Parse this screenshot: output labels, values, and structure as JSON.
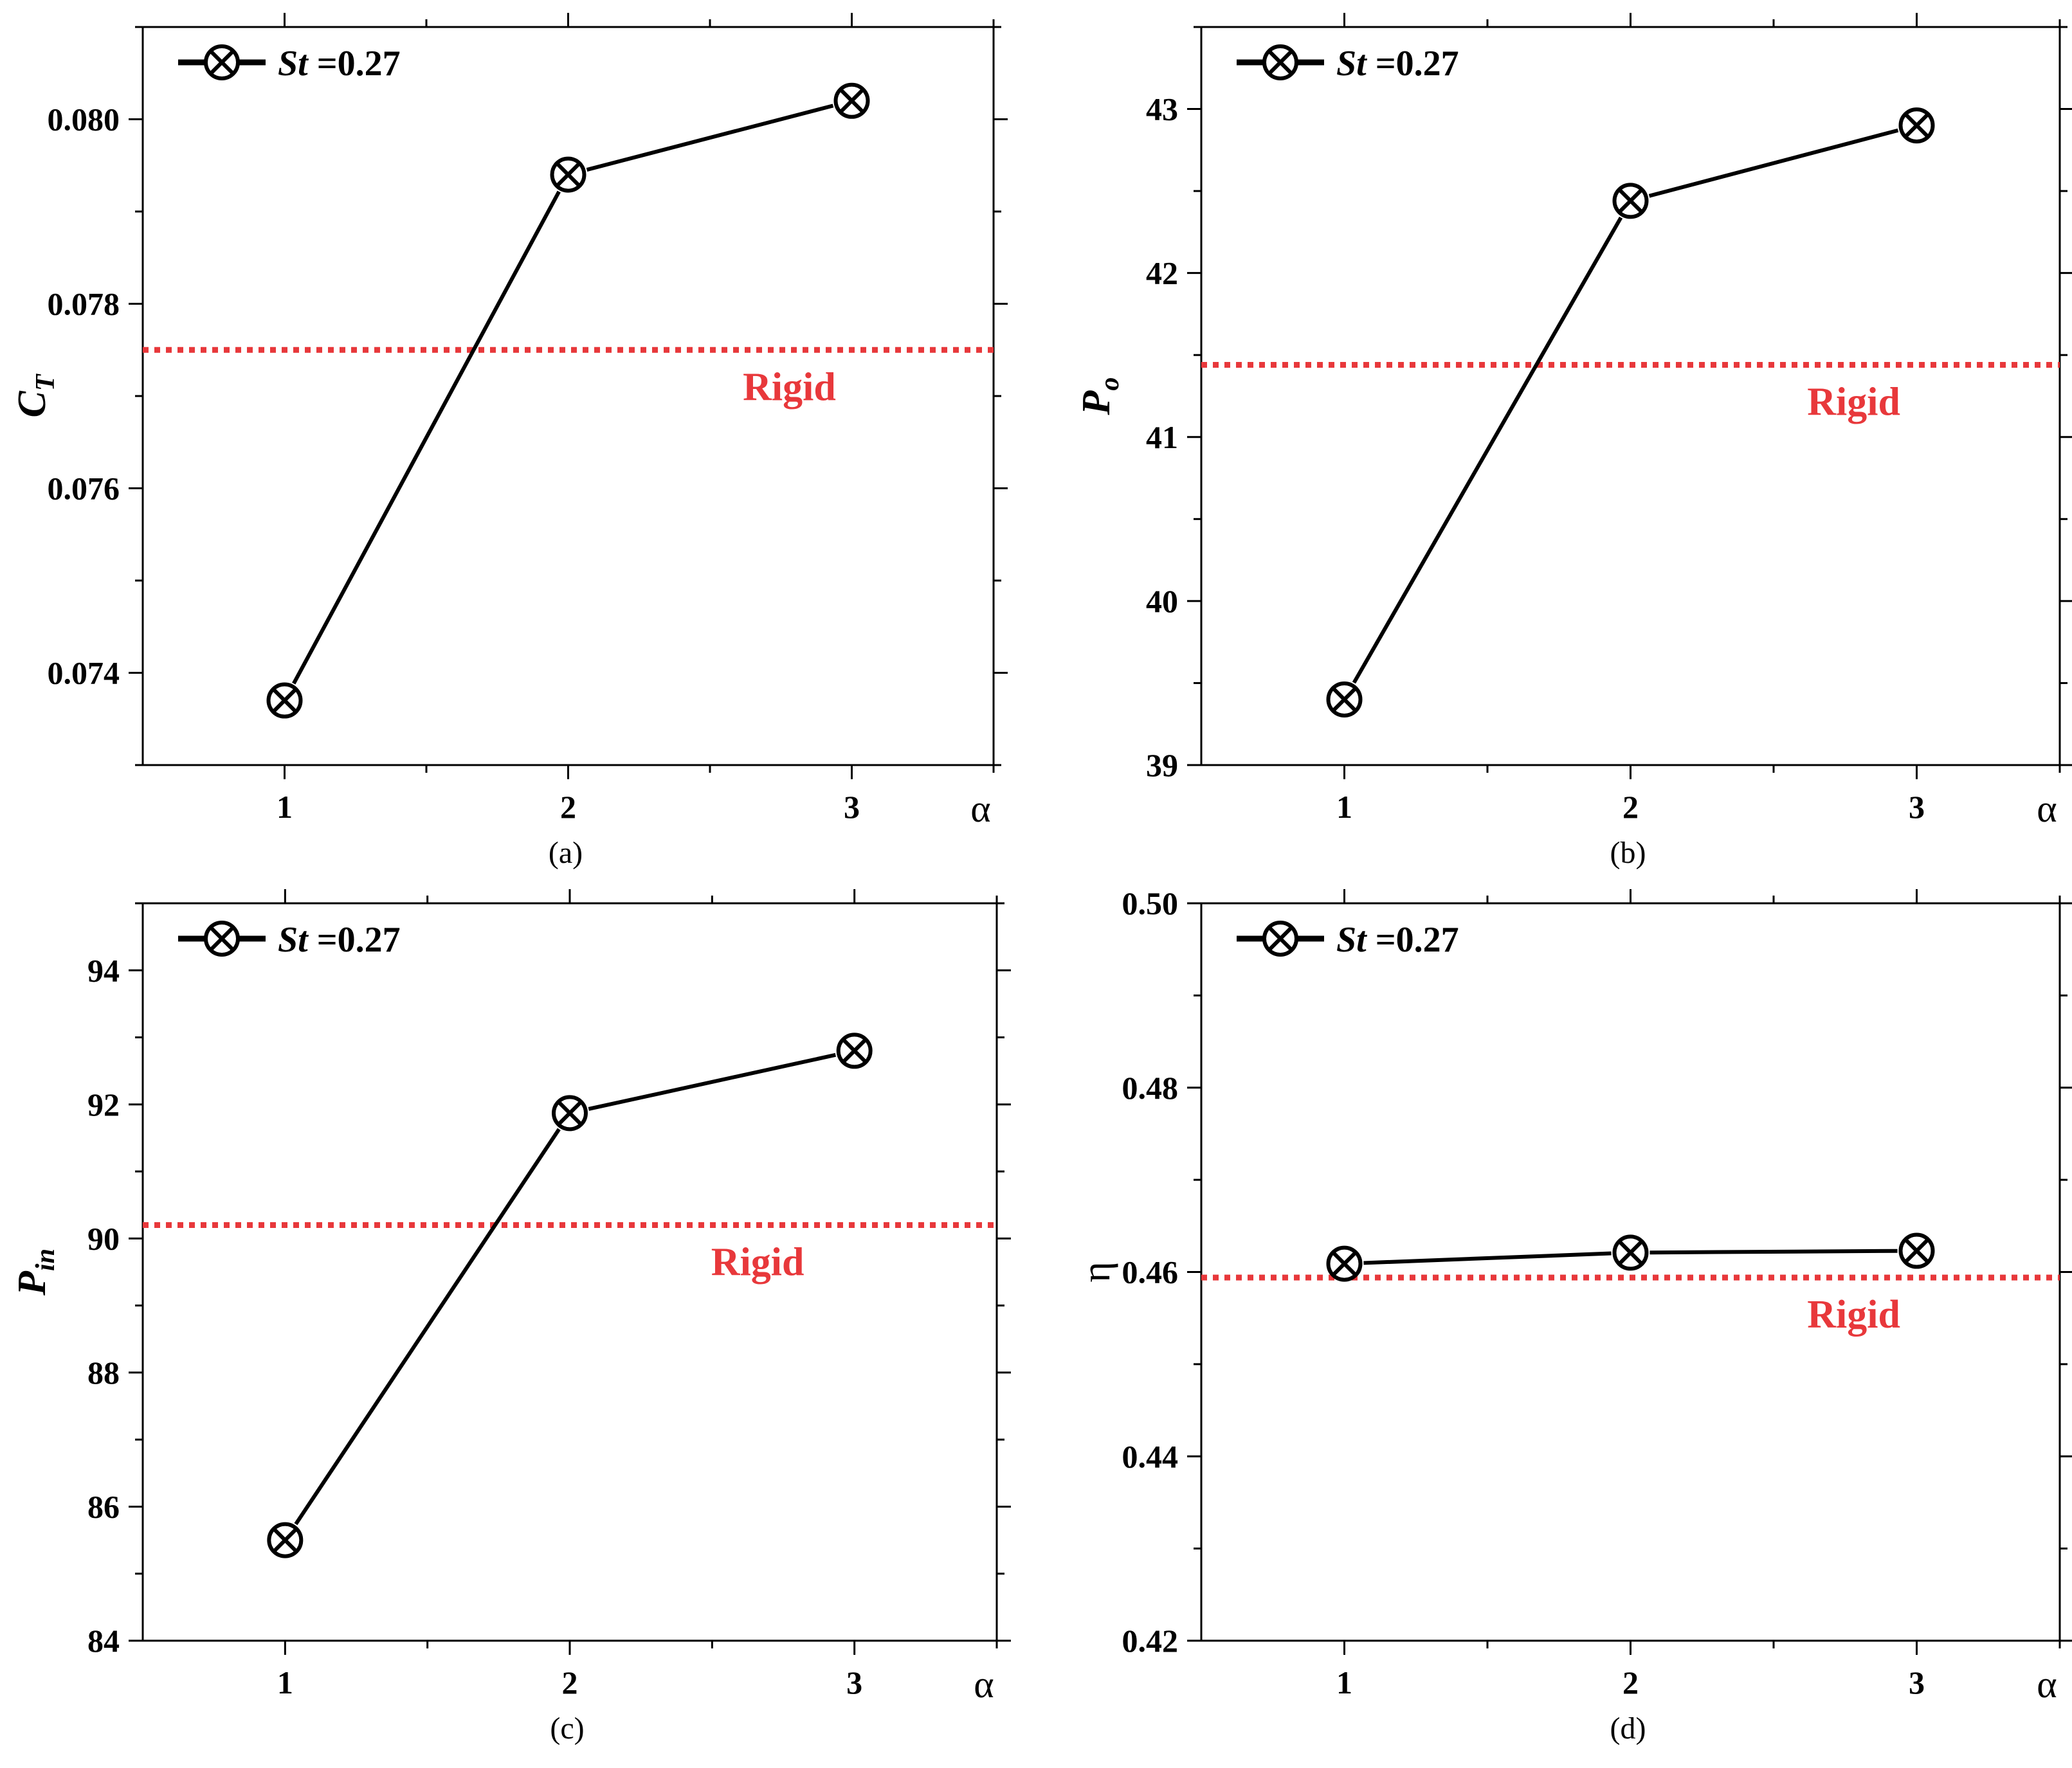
{
  "colors": {
    "series": "#000000",
    "reference": "#e8383b",
    "axis": "#000000",
    "background": "#ffffff"
  },
  "marker": "circle-x",
  "chart_data": [
    {
      "type": "line",
      "caption": "(a)",
      "xlabel": "α",
      "ylabel_main": "C",
      "ylabel_sub": "T",
      "x": [
        1,
        2,
        3
      ],
      "xlim": [
        0.5,
        3.5
      ],
      "xticks": [
        1,
        2,
        3
      ],
      "xtick_labels": [
        "1",
        "2",
        "3"
      ],
      "ylim": [
        0.073,
        0.081
      ],
      "yticks": [
        0.074,
        0.076,
        0.078,
        0.08
      ],
      "ytick_labels": [
        "0.074",
        "0.076",
        "0.078",
        "0.080"
      ],
      "series": [
        {
          "name": "St =0.27",
          "legend_prefix": "St",
          "legend_suffix": " =0.27",
          "values": [
            0.0737,
            0.0794,
            0.0802
          ]
        }
      ],
      "reference": {
        "label": "Rigid",
        "value": 0.0775,
        "style": "dotted"
      },
      "legend_position": "top-left",
      "grid": false
    },
    {
      "type": "line",
      "caption": "(b)",
      "xlabel": "α",
      "ylabel_main": "P",
      "ylabel_sub": "o",
      "x": [
        1,
        2,
        3
      ],
      "xlim": [
        0.5,
        3.5
      ],
      "xticks": [
        1,
        2,
        3
      ],
      "xtick_labels": [
        "1",
        "2",
        "3"
      ],
      "ylim": [
        39,
        43.5
      ],
      "yticks": [
        39,
        40,
        41,
        42,
        43
      ],
      "ytick_labels": [
        "39",
        "40",
        "41",
        "42",
        "43"
      ],
      "series": [
        {
          "name": "St =0.27",
          "legend_prefix": "St",
          "legend_suffix": " =0.27",
          "values": [
            39.4,
            42.44,
            42.9
          ]
        }
      ],
      "reference": {
        "label": "Rigid",
        "value": 41.44,
        "style": "dotted"
      },
      "legend_position": "top-left",
      "grid": false
    },
    {
      "type": "line",
      "caption": "(c)",
      "xlabel": "α",
      "ylabel_main": "P",
      "ylabel_sub": "in",
      "x": [
        1,
        2,
        3
      ],
      "xlim": [
        0.5,
        3.5
      ],
      "xticks": [
        1,
        2,
        3
      ],
      "xtick_labels": [
        "1",
        "2",
        "3"
      ],
      "ylim": [
        84,
        95
      ],
      "yticks": [
        84,
        86,
        88,
        90,
        92,
        94
      ],
      "ytick_labels": [
        "84",
        "86",
        "88",
        "90",
        "92",
        "94"
      ],
      "series": [
        {
          "name": "St =0.27",
          "legend_prefix": "St",
          "legend_suffix": " =0.27",
          "values": [
            85.5,
            91.87,
            92.8
          ]
        }
      ],
      "reference": {
        "label": "Rigid",
        "value": 90.2,
        "style": "dotted"
      },
      "legend_position": "top-left",
      "grid": false
    },
    {
      "type": "line",
      "caption": "(d)",
      "xlabel": "α",
      "ylabel_main": "η",
      "ylabel_sub": "",
      "x": [
        1,
        2,
        3
      ],
      "xlim": [
        0.5,
        3.5
      ],
      "xticks": [
        1,
        2,
        3
      ],
      "xtick_labels": [
        "1",
        "2",
        "3"
      ],
      "ylim": [
        0.42,
        0.5
      ],
      "yticks": [
        0.42,
        0.44,
        0.46,
        0.48,
        0.5
      ],
      "ytick_labels": [
        "0.42",
        "0.44",
        "0.46",
        "0.48",
        "0.50"
      ],
      "series": [
        {
          "name": "St =0.27",
          "legend_prefix": "St",
          "legend_suffix": " =0.27",
          "values": [
            0.4609,
            0.4621,
            0.4623
          ]
        }
      ],
      "reference": {
        "label": "Rigid",
        "value": 0.4594,
        "style": "dotted"
      },
      "legend_position": "top-left",
      "grid": false
    }
  ]
}
